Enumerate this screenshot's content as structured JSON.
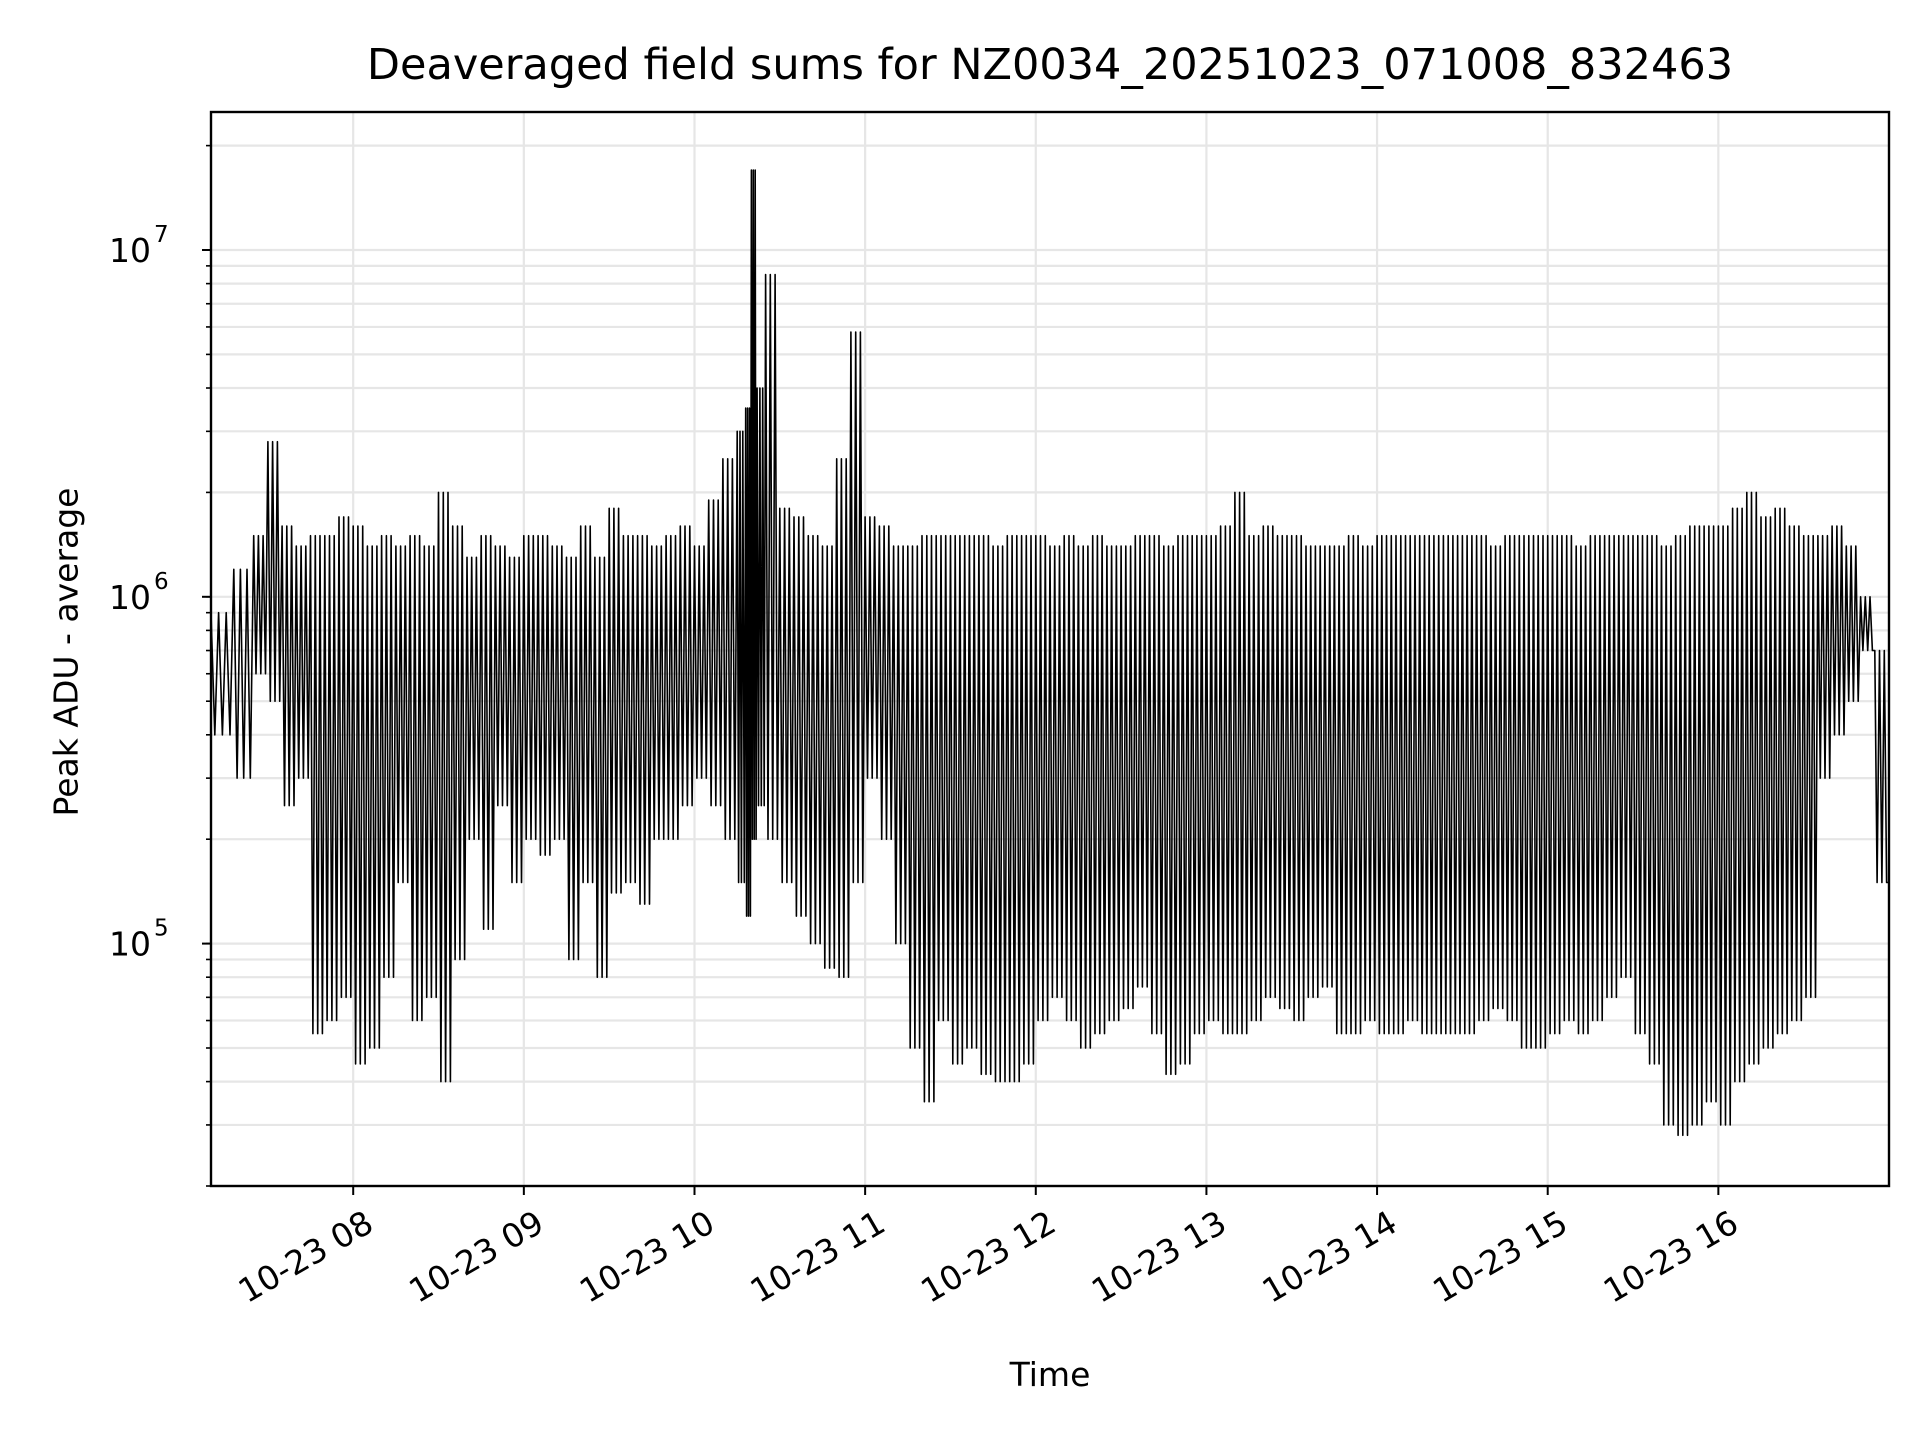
{
  "chart_data": {
    "type": "line",
    "title": "Deaveraged field sums for NZ0034_20251023_071008_832463",
    "xlabel": "Time",
    "ylabel": "Peak ADU - average",
    "x_range": [
      "2025-10-23 07:10",
      "2025-10-23 17:00"
    ],
    "ylim": [
      20000,
      25000000
    ],
    "y_scale": "log",
    "grid": true,
    "line_color": "#000000",
    "x_ticks": [
      {
        "value": "2025-10-23 08:00",
        "label": "10-23 08"
      },
      {
        "value": "2025-10-23 09:00",
        "label": "10-23 09"
      },
      {
        "value": "2025-10-23 10:00",
        "label": "10-23 10"
      },
      {
        "value": "2025-10-23 11:00",
        "label": "10-23 11"
      },
      {
        "value": "2025-10-23 12:00",
        "label": "10-23 12"
      },
      {
        "value": "2025-10-23 13:00",
        "label": "10-23 13"
      },
      {
        "value": "2025-10-23 14:00",
        "label": "10-23 14"
      },
      {
        "value": "2025-10-23 15:00",
        "label": "10-23 15"
      },
      {
        "value": "2025-10-23 16:00",
        "label": "10-23 16"
      }
    ],
    "y_ticks": [
      {
        "value": 100000,
        "base": "10",
        "exp": "5"
      },
      {
        "value": 1000000,
        "base": "10",
        "exp": "6"
      },
      {
        "value": 10000000,
        "base": "10",
        "exp": "7"
      }
    ],
    "series": [
      {
        "x": [
          "2025-10-23 07:10",
          "2025-10-23 07:18",
          "2025-10-23 07:25",
          "2025-10-23 07:30",
          "2025-10-23 07:35",
          "2025-10-23 07:40",
          "2025-10-23 07:45",
          "2025-10-23 07:50",
          "2025-10-23 07:55",
          "2025-10-23 08:00",
          "2025-10-23 08:05",
          "2025-10-23 08:10",
          "2025-10-23 08:15",
          "2025-10-23 08:20",
          "2025-10-23 08:25",
          "2025-10-23 08:30",
          "2025-10-23 08:35",
          "2025-10-23 08:40",
          "2025-10-23 08:45",
          "2025-10-23 08:50",
          "2025-10-23 08:55",
          "2025-10-23 09:00",
          "2025-10-23 09:05",
          "2025-10-23 09:10",
          "2025-10-23 09:15",
          "2025-10-23 09:20",
          "2025-10-23 09:25",
          "2025-10-23 09:30",
          "2025-10-23 09:35",
          "2025-10-23 09:40",
          "2025-10-23 09:45",
          "2025-10-23 09:50",
          "2025-10-23 09:55",
          "2025-10-23 10:00",
          "2025-10-23 10:05",
          "2025-10-23 10:10",
          "2025-10-23 10:15",
          "2025-10-23 10:18",
          "2025-10-23 10:20",
          "2025-10-23 10:22",
          "2025-10-23 10:25",
          "2025-10-23 10:30",
          "2025-10-23 10:35",
          "2025-10-23 10:40",
          "2025-10-23 10:45",
          "2025-10-23 10:50",
          "2025-10-23 10:55",
          "2025-10-23 11:00",
          "2025-10-23 11:05",
          "2025-10-23 11:10",
          "2025-10-23 11:15",
          "2025-10-23 11:20",
          "2025-10-23 11:25",
          "2025-10-23 11:30",
          "2025-10-23 11:35",
          "2025-10-23 11:40",
          "2025-10-23 11:45",
          "2025-10-23 11:50",
          "2025-10-23 11:55",
          "2025-10-23 12:00",
          "2025-10-23 12:05",
          "2025-10-23 12:10",
          "2025-10-23 12:15",
          "2025-10-23 12:20",
          "2025-10-23 12:25",
          "2025-10-23 12:30",
          "2025-10-23 12:35",
          "2025-10-23 12:40",
          "2025-10-23 12:45",
          "2025-10-23 12:50",
          "2025-10-23 12:55",
          "2025-10-23 13:00",
          "2025-10-23 13:05",
          "2025-10-23 13:10",
          "2025-10-23 13:15",
          "2025-10-23 13:20",
          "2025-10-23 13:25",
          "2025-10-23 13:30",
          "2025-10-23 13:35",
          "2025-10-23 13:40",
          "2025-10-23 13:45",
          "2025-10-23 13:50",
          "2025-10-23 13:55",
          "2025-10-23 14:00",
          "2025-10-23 14:05",
          "2025-10-23 14:10",
          "2025-10-23 14:15",
          "2025-10-23 14:20",
          "2025-10-23 14:25",
          "2025-10-23 14:30",
          "2025-10-23 14:35",
          "2025-10-23 14:40",
          "2025-10-23 14:45",
          "2025-10-23 14:50",
          "2025-10-23 14:55",
          "2025-10-23 15:00",
          "2025-10-23 15:05",
          "2025-10-23 15:10",
          "2025-10-23 15:15",
          "2025-10-23 15:20",
          "2025-10-23 15:25",
          "2025-10-23 15:30",
          "2025-10-23 15:35",
          "2025-10-23 15:40",
          "2025-10-23 15:45",
          "2025-10-23 15:50",
          "2025-10-23 15:55",
          "2025-10-23 16:00",
          "2025-10-23 16:05",
          "2025-10-23 16:10",
          "2025-10-23 16:15",
          "2025-10-23 16:20",
          "2025-10-23 16:25",
          "2025-10-23 16:30",
          "2025-10-23 16:35",
          "2025-10-23 16:40",
          "2025-10-23 16:45",
          "2025-10-23 16:50",
          "2025-10-23 16:55",
          "2025-10-23 17:00"
        ],
        "low": [
          400000,
          300000,
          600000,
          500000,
          250000,
          300000,
          55000,
          60000,
          70000,
          45000,
          50000,
          80000,
          150000,
          60000,
          70000,
          40000,
          90000,
          200000,
          110000,
          250000,
          150000,
          200000,
          180000,
          200000,
          90000,
          150000,
          80000,
          140000,
          150000,
          130000,
          200000,
          200000,
          250000,
          300000,
          250000,
          200000,
          150000,
          120000,
          200000,
          250000,
          200000,
          150000,
          120000,
          100000,
          85000,
          80000,
          150000,
          300000,
          200000,
          100000,
          50000,
          35000,
          60000,
          45000,
          50000,
          42000,
          40000,
          40000,
          45000,
          60000,
          70000,
          60000,
          50000,
          55000,
          60000,
          65000,
          75000,
          55000,
          42000,
          45000,
          55000,
          60000,
          55000,
          55000,
          60000,
          70000,
          65000,
          60000,
          70000,
          75000,
          55000,
          55000,
          60000,
          55000,
          55000,
          60000,
          55000,
          55000,
          55000,
          55000,
          60000,
          65000,
          60000,
          50000,
          50000,
          55000,
          60000,
          55000,
          60000,
          70000,
          80000,
          55000,
          45000,
          30000,
          28000,
          30000,
          35000,
          30000,
          40000,
          45000,
          50000,
          55000,
          60000,
          70000,
          300000,
          400000,
          500000,
          700000,
          150000,
          25000
        ],
        "high": [
          900000,
          1200000,
          1500000,
          2800000,
          1600000,
          1400000,
          1500000,
          1500000,
          1700000,
          1600000,
          1400000,
          1500000,
          1400000,
          1500000,
          1400000,
          2000000,
          1600000,
          1300000,
          1500000,
          1400000,
          1300000,
          1500000,
          1500000,
          1400000,
          1300000,
          1600000,
          1300000,
          1800000,
          1500000,
          1500000,
          1400000,
          1500000,
          1600000,
          1400000,
          1900000,
          2500000,
          3000000,
          3500000,
          17000000,
          4000000,
          8500000,
          1800000,
          1700000,
          1500000,
          1400000,
          2500000,
          5800000,
          1700000,
          1600000,
          1400000,
          1400000,
          1500000,
          1500000,
          1500000,
          1500000,
          1500000,
          1400000,
          1500000,
          1500000,
          1500000,
          1400000,
          1500000,
          1400000,
          1500000,
          1400000,
          1400000,
          1500000,
          1500000,
          1400000,
          1500000,
          1500000,
          1500000,
          1600000,
          2000000,
          1500000,
          1600000,
          1500000,
          1500000,
          1400000,
          1400000,
          1400000,
          1500000,
          1400000,
          1500000,
          1500000,
          1500000,
          1500000,
          1500000,
          1500000,
          1500000,
          1500000,
          1400000,
          1500000,
          1500000,
          1500000,
          1500000,
          1500000,
          1400000,
          1500000,
          1500000,
          1500000,
          1500000,
          1500000,
          1400000,
          1500000,
          1600000,
          1600000,
          1600000,
          1800000,
          2000000,
          1700000,
          1800000,
          1600000,
          1500000,
          1500000,
          1600000,
          1400000,
          1000000,
          700000,
          150000
        ]
      }
    ]
  }
}
